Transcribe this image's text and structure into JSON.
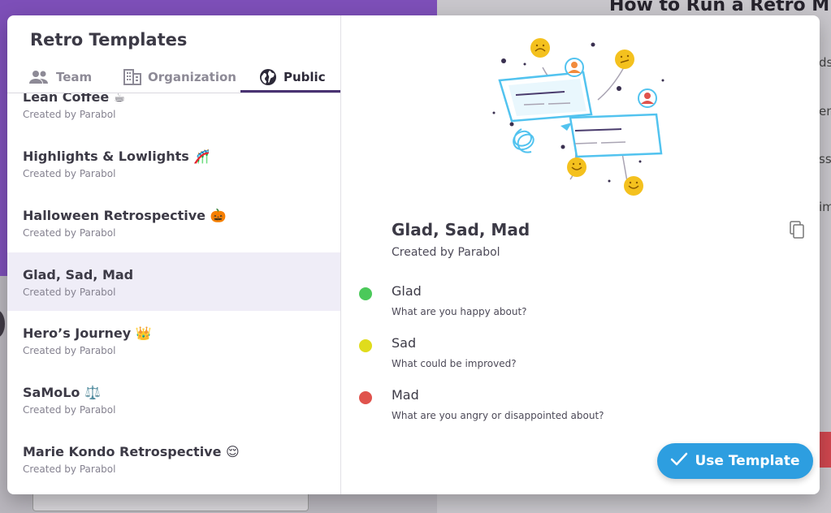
{
  "background": {
    "heading": "How to Run a Retro M",
    "fragments": [
      "ds",
      "en",
      "ss",
      "im"
    ]
  },
  "modal": {
    "title": "Retro Templates",
    "tabs": [
      {
        "label": "Team",
        "icon": "team-icon"
      },
      {
        "label": "Organization",
        "icon": "organization-icon"
      },
      {
        "label": "Public",
        "icon": "globe-icon"
      }
    ],
    "active_tab": "Public"
  },
  "templates": [
    {
      "name": "Lean Coffee ☕",
      "creator": "Created by Parabol"
    },
    {
      "name": "Highlights & Lowlights 🎢",
      "creator": "Created by Parabol"
    },
    {
      "name": "Halloween Retrospective 🎃",
      "creator": "Created by Parabol"
    },
    {
      "name": "Glad, Sad, Mad",
      "creator": "Created by Parabol"
    },
    {
      "name": "Hero’s Journey 👑",
      "creator": "Created by Parabol"
    },
    {
      "name": "SaMoLo ⚖️",
      "creator": "Created by Parabol"
    },
    {
      "name": "Marie Kondo Retrospective 😌",
      "creator": "Created by Parabol"
    }
  ],
  "selected_template": {
    "name": "Glad, Sad, Mad",
    "creator": "Created by Parabol",
    "prompts": [
      {
        "title": "Glad",
        "description": "What are you happy about?",
        "color": "#4bc95a"
      },
      {
        "title": "Sad",
        "description": "What could be improved?",
        "color": "#e0dc1c"
      },
      {
        "title": "Mad",
        "description": "What are you angry or disappointed about?",
        "color": "#e0534d"
      }
    ]
  },
  "actions": {
    "use_template": "Use Template"
  },
  "colors": {
    "primary": "#2d9ee0",
    "tab_underline": "#493272",
    "selected_row": "#efedf7"
  }
}
